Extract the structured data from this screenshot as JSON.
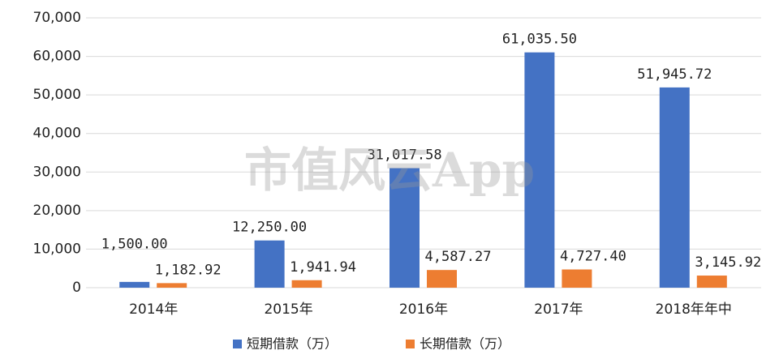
{
  "chart_data": {
    "type": "bar",
    "categories": [
      "2014年",
      "2015年",
      "2016年",
      "2017年",
      "2018年年中"
    ],
    "series": [
      {
        "name": "短期借款（万）",
        "color": "#4472c4",
        "values": [
          1500,
          12250,
          31017.58,
          61035.5,
          51945.72
        ],
        "value_labels": [
          "1,500.00",
          "12,250.00",
          "31,017.58",
          "61,035.50",
          "51,945.72"
        ]
      },
      {
        "name": "长期借款（万）",
        "color": "#ed7d31",
        "values": [
          1182.92,
          1941.94,
          4587.27,
          4727.4,
          3145.92
        ],
        "value_labels": [
          "1,182.92",
          "1,941.94",
          "4,587.27",
          "4,727.40",
          "3,145.92"
        ]
      }
    ],
    "ylim": [
      0,
      70000
    ],
    "yticks": [
      0,
      {
        "value": 10000,
        "label": "10,000"
      },
      {
        "value": 20000,
        "label": "20,000"
      },
      {
        "value": 30000,
        "label": "30,000"
      },
      {
        "value": 40000,
        "label": "40,000"
      },
      {
        "value": 50000,
        "label": "50,000"
      },
      {
        "value": 60000,
        "label": "60,000"
      },
      {
        "value": 70000,
        "label": "70,000"
      }
    ],
    "grid": true,
    "legend": "bottom",
    "watermark": "市值风云App"
  }
}
